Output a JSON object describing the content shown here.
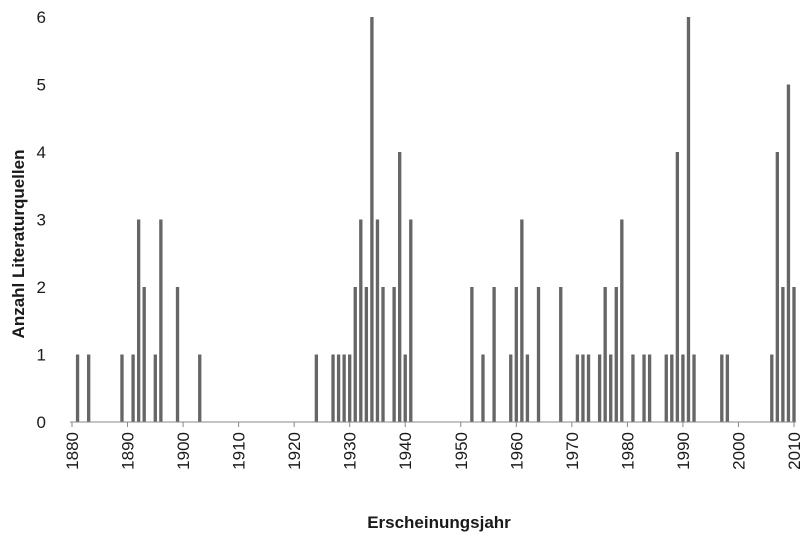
{
  "chart_data": {
    "type": "bar",
    "title": "",
    "xlabel": "Erscheinungsjahr",
    "ylabel": "Anzahl Literaturquellen",
    "xlim": [
      1880,
      2010
    ],
    "ylim": [
      0,
      6
    ],
    "x_ticks": [
      "1880",
      "1890",
      "1900",
      "1910",
      "1920",
      "1930",
      "1940",
      "1950",
      "1960",
      "1970",
      "1980",
      "1990",
      "2000",
      "2010"
    ],
    "y_ticks": [
      "0",
      "1",
      "2",
      "3",
      "4",
      "5",
      "6"
    ],
    "grid": false,
    "bar_color": "#666666",
    "points": [
      {
        "x": 1881,
        "y": 1
      },
      {
        "x": 1883,
        "y": 1
      },
      {
        "x": 1889,
        "y": 1
      },
      {
        "x": 1891,
        "y": 1
      },
      {
        "x": 1892,
        "y": 3
      },
      {
        "x": 1893,
        "y": 2
      },
      {
        "x": 1895,
        "y": 1
      },
      {
        "x": 1896,
        "y": 3
      },
      {
        "x": 1899,
        "y": 2
      },
      {
        "x": 1903,
        "y": 1
      },
      {
        "x": 1924,
        "y": 1
      },
      {
        "x": 1927,
        "y": 1
      },
      {
        "x": 1928,
        "y": 1
      },
      {
        "x": 1929,
        "y": 1
      },
      {
        "x": 1930,
        "y": 1
      },
      {
        "x": 1931,
        "y": 2
      },
      {
        "x": 1932,
        "y": 3
      },
      {
        "x": 1933,
        "y": 2
      },
      {
        "x": 1934,
        "y": 6
      },
      {
        "x": 1935,
        "y": 3
      },
      {
        "x": 1936,
        "y": 2
      },
      {
        "x": 1938,
        "y": 2
      },
      {
        "x": 1939,
        "y": 4
      },
      {
        "x": 1940,
        "y": 1
      },
      {
        "x": 1941,
        "y": 3
      },
      {
        "x": 1952,
        "y": 2
      },
      {
        "x": 1954,
        "y": 1
      },
      {
        "x": 1956,
        "y": 2
      },
      {
        "x": 1959,
        "y": 1
      },
      {
        "x": 1960,
        "y": 2
      },
      {
        "x": 1961,
        "y": 3
      },
      {
        "x": 1962,
        "y": 1
      },
      {
        "x": 1964,
        "y": 2
      },
      {
        "x": 1968,
        "y": 2
      },
      {
        "x": 1971,
        "y": 1
      },
      {
        "x": 1972,
        "y": 1
      },
      {
        "x": 1973,
        "y": 1
      },
      {
        "x": 1975,
        "y": 1
      },
      {
        "x": 1976,
        "y": 2
      },
      {
        "x": 1977,
        "y": 1
      },
      {
        "x": 1978,
        "y": 2
      },
      {
        "x": 1979,
        "y": 3
      },
      {
        "x": 1981,
        "y": 1
      },
      {
        "x": 1983,
        "y": 1
      },
      {
        "x": 1984,
        "y": 1
      },
      {
        "x": 1987,
        "y": 1
      },
      {
        "x": 1988,
        "y": 1
      },
      {
        "x": 1989,
        "y": 4
      },
      {
        "x": 1990,
        "y": 1
      },
      {
        "x": 1991,
        "y": 6
      },
      {
        "x": 1992,
        "y": 1
      },
      {
        "x": 1997,
        "y": 1
      },
      {
        "x": 1998,
        "y": 1
      },
      {
        "x": 2006,
        "y": 1
      },
      {
        "x": 2007,
        "y": 4
      },
      {
        "x": 2008,
        "y": 2
      },
      {
        "x": 2009,
        "y": 5
      },
      {
        "x": 2010,
        "y": 2
      }
    ]
  }
}
